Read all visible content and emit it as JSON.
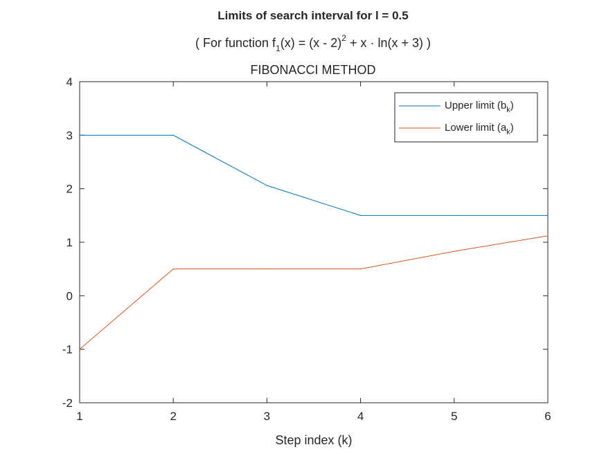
{
  "chart_data": {
    "type": "line",
    "title": "Limits of search interval for l = 0.5",
    "subtitle": {
      "prefix": "( For function f",
      "sub": "1",
      "mid": "(x) = (x - 2)",
      "sup": "2",
      "suffix": " + x · ln(x + 3) )"
    },
    "method_title": "FIBONACCI METHOD",
    "xlabel": "Step index (k)",
    "ylabel": "",
    "xlim": [
      1,
      6
    ],
    "ylim": [
      -2,
      4
    ],
    "xticks": [
      1,
      2,
      3,
      4,
      5,
      6
    ],
    "yticks": [
      -2,
      -1,
      0,
      1,
      2,
      3,
      4
    ],
    "x": [
      1,
      2,
      3,
      4,
      5,
      6
    ],
    "series": [
      {
        "name_main": "Upper limit (b",
        "name_sub": "k",
        "name_end": ")",
        "color": "#0072BD",
        "values": [
          3.0,
          3.0,
          2.06,
          1.5,
          1.5,
          1.5
        ]
      },
      {
        "name_main": "Lower limit (a",
        "name_sub": "k",
        "name_end": ")",
        "color": "#D95319",
        "values": [
          -1.0,
          0.5,
          0.5,
          0.5,
          0.83,
          1.12
        ]
      }
    ],
    "legend_position": "top-right",
    "grid": false
  }
}
